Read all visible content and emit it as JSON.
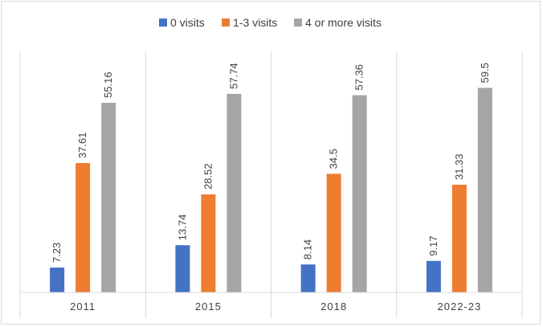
{
  "chart_data": {
    "type": "bar",
    "categories": [
      "2011",
      "2015",
      "2018",
      "2022-23"
    ],
    "series": [
      {
        "name": "0 visits",
        "color": "#4472c4",
        "values": [
          7.23,
          13.74,
          8.14,
          9.17
        ]
      },
      {
        "name": "1-3 visits",
        "color": "#ed7d31",
        "values": [
          37.61,
          28.52,
          34.5,
          31.33
        ]
      },
      {
        "name": "4 or more visits",
        "color": "#a5a5a5",
        "values": [
          55.16,
          57.74,
          57.36,
          59.5
        ]
      }
    ],
    "data_labels": [
      [
        "7.23",
        "37.61",
        "55.16"
      ],
      [
        "13.74",
        "28.52",
        "57.74"
      ],
      [
        "8.14",
        "34.5",
        "57.36"
      ],
      [
        "9.17",
        "31.33",
        "59.5"
      ]
    ],
    "ylim": [
      0,
      70
    ],
    "grid": false,
    "legend_position": "top",
    "data_labels_rotated": true
  }
}
